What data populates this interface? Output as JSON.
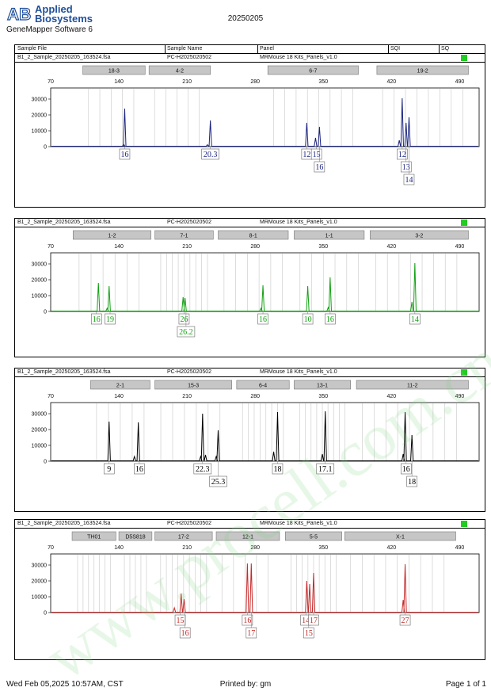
{
  "brand": {
    "logo_letters": "AB",
    "line1": "Applied",
    "line2": "Biosystems",
    "software": "GeneMapper Software 6"
  },
  "header_date": "20250205",
  "columns": {
    "sample_file": "Sample File",
    "sample_name": "Sample Name",
    "panel": "Panel",
    "sqi": "SQI",
    "sq": "SQ"
  },
  "footer": {
    "left": "Wed Feb 05,2025 10:57AM, CST",
    "center": "Printed by: gm",
    "right": "Page 1 of 1"
  },
  "watermark": "www.procell.com.cn",
  "chart_data": [
    {
      "type": "line",
      "color": "#1a237e",
      "sample_file": "B1_2_Sample_20250205_163524.fsa",
      "sample_name": "PC-H2025020502",
      "panel": "MRMouse 18 Kits_Panels_v1.0",
      "xlim": [
        70,
        510
      ],
      "xticks": [
        70,
        140,
        210,
        280,
        350,
        420,
        490
      ],
      "ylim": [
        0,
        37000
      ],
      "yticks": [
        0,
        10000,
        20000,
        30000
      ],
      "markers": [
        {
          "label": "18-3",
          "start": 103,
          "end": 167
        },
        {
          "label": "4-2",
          "start": 171,
          "end": 234
        },
        {
          "label": "6-7",
          "start": 293,
          "end": 386
        },
        {
          "label": "19-2",
          "start": 405,
          "end": 499
        }
      ],
      "peaks": [
        {
          "x": 145,
          "y": 1500
        },
        {
          "x": 146,
          "y": 24000
        },
        {
          "x": 231,
          "y": 1200
        },
        {
          "x": 234,
          "y": 16500
        },
        {
          "x": 333,
          "y": 15000
        },
        {
          "x": 342,
          "y": 5500
        },
        {
          "x": 346,
          "y": 12500
        },
        {
          "x": 428,
          "y": 4000
        },
        {
          "x": 431,
          "y": 30500
        },
        {
          "x": 435,
          "y": 15000
        },
        {
          "x": 438,
          "y": 18500
        }
      ],
      "alleles": [
        {
          "x": 146,
          "row": 0,
          "text": "16"
        },
        {
          "x": 234,
          "row": 0,
          "text": "20.3"
        },
        {
          "x": 333,
          "row": 0,
          "text": "12"
        },
        {
          "x": 343,
          "row": 0,
          "text": "15"
        },
        {
          "x": 346,
          "row": 1,
          "text": "16"
        },
        {
          "x": 431,
          "row": 0,
          "text": "12"
        },
        {
          "x": 435,
          "row": 1,
          "text": "13"
        },
        {
          "x": 438,
          "row": 2,
          "text": "14"
        }
      ]
    },
    {
      "type": "line",
      "color": "#11a011",
      "sample_file": "B1_2_Sample_20250205_163524.fsa",
      "sample_name": "PC-H2025020502",
      "panel": "MRMouse 18 Kits_Panels_v1.0",
      "xlim": [
        70,
        510
      ],
      "xticks": [
        70,
        140,
        210,
        280,
        350,
        420,
        490
      ],
      "ylim": [
        0,
        37000
      ],
      "yticks": [
        0,
        10000,
        20000,
        30000
      ],
      "markers": [
        {
          "label": "1-2",
          "start": 93,
          "end": 173
        },
        {
          "label": "7-1",
          "start": 177,
          "end": 237
        },
        {
          "label": "8-1",
          "start": 242,
          "end": 314
        },
        {
          "label": "1-1",
          "start": 320,
          "end": 392
        },
        {
          "label": "3-2",
          "start": 398,
          "end": 499
        }
      ],
      "peaks": [
        {
          "x": 119,
          "y": 18000
        },
        {
          "x": 128,
          "y": 2000
        },
        {
          "x": 130,
          "y": 16000
        },
        {
          "x": 206,
          "y": 9000
        },
        {
          "x": 208,
          "y": 8500
        },
        {
          "x": 288,
          "y": 16500
        },
        {
          "x": 286,
          "y": 2000
        },
        {
          "x": 334,
          "y": 16000
        },
        {
          "x": 357,
          "y": 21500
        },
        {
          "x": 355,
          "y": 2500
        },
        {
          "x": 441,
          "y": 6000
        },
        {
          "x": 444,
          "y": 30500
        }
      ],
      "alleles": [
        {
          "x": 117,
          "row": 0,
          "text": "16"
        },
        {
          "x": 131,
          "row": 0,
          "text": "19"
        },
        {
          "x": 207,
          "row": 0,
          "text": "26"
        },
        {
          "x": 209,
          "row": 1,
          "text": "26.2"
        },
        {
          "x": 288,
          "row": 0,
          "text": "16"
        },
        {
          "x": 334,
          "row": 0,
          "text": "10"
        },
        {
          "x": 357,
          "row": 0,
          "text": "16"
        },
        {
          "x": 444,
          "row": 0,
          "text": "14"
        }
      ]
    },
    {
      "type": "line",
      "color": "#000000",
      "sample_file": "B1_2_Sample_20250205_163524.fsa",
      "sample_name": "PC-H2025020502",
      "panel": "MRMouse 18 Kits_Panels_v1.0",
      "xlim": [
        70,
        510
      ],
      "xticks": [
        70,
        140,
        210,
        280,
        350,
        420,
        490
      ],
      "ylim": [
        0,
        37000
      ],
      "yticks": [
        0,
        10000,
        20000,
        30000
      ],
      "markers": [
        {
          "label": "2-1",
          "start": 111,
          "end": 172
        },
        {
          "label": "15-3",
          "start": 177,
          "end": 256
        },
        {
          "label": "6-4",
          "start": 261,
          "end": 315
        },
        {
          "label": "13-1",
          "start": 320,
          "end": 378
        },
        {
          "label": "11-2",
          "start": 384,
          "end": 499
        }
      ],
      "peaks": [
        {
          "x": 130,
          "y": 25000
        },
        {
          "x": 156,
          "y": 3000
        },
        {
          "x": 160,
          "y": 24500
        },
        {
          "x": 224,
          "y": 3000
        },
        {
          "x": 226,
          "y": 30000
        },
        {
          "x": 229,
          "y": 4000
        },
        {
          "x": 240,
          "y": 3000
        },
        {
          "x": 242,
          "y": 19500
        },
        {
          "x": 299,
          "y": 6000
        },
        {
          "x": 303,
          "y": 31000
        },
        {
          "x": 349,
          "y": 4500
        },
        {
          "x": 352,
          "y": 31500
        },
        {
          "x": 432,
          "y": 4500
        },
        {
          "x": 434,
          "y": 31000
        },
        {
          "x": 441,
          "y": 16500
        }
      ],
      "alleles": [
        {
          "x": 130,
          "row": 0,
          "text": "9"
        },
        {
          "x": 161,
          "row": 0,
          "text": "16"
        },
        {
          "x": 226,
          "row": 0,
          "text": "22.3"
        },
        {
          "x": 242,
          "row": 1,
          "text": "25.3"
        },
        {
          "x": 303,
          "row": 0,
          "text": "18"
        },
        {
          "x": 352,
          "row": 0,
          "text": "17.1"
        },
        {
          "x": 435,
          "row": 0,
          "text": "16"
        },
        {
          "x": 441,
          "row": 1,
          "text": "18"
        }
      ]
    },
    {
      "type": "line",
      "color": "#c62828",
      "sample_file": "B1_2_Sample_20250205_163524.fsa",
      "sample_name": "PC-H2025020502",
      "panel": "MRMouse 18 Kits_Panels_v1.0",
      "xlim": [
        70,
        510
      ],
      "xticks": [
        70,
        140,
        210,
        280,
        350,
        420,
        490
      ],
      "ylim": [
        0,
        37000
      ],
      "yticks": [
        0,
        10000,
        20000,
        30000
      ],
      "markers": [
        {
          "label": "TH01",
          "start": 92,
          "end": 137
        },
        {
          "label": "D5S818",
          "start": 140,
          "end": 174
        },
        {
          "label": "17-2",
          "start": 177,
          "end": 236
        },
        {
          "label": "12-1",
          "start": 240,
          "end": 305
        },
        {
          "label": "5-5",
          "start": 311,
          "end": 369
        },
        {
          "label": "X-1",
          "start": 372,
          "end": 486
        }
      ],
      "peaks": [
        {
          "x": 197,
          "y": 3000
        },
        {
          "x": 204,
          "y": 12000
        },
        {
          "x": 207,
          "y": 8500
        },
        {
          "x": 272,
          "y": 31000
        },
        {
          "x": 276,
          "y": 31000
        },
        {
          "x": 333,
          "y": 20000
        },
        {
          "x": 336,
          "y": 18000
        },
        {
          "x": 340,
          "y": 25000
        },
        {
          "x": 432,
          "y": 8000
        },
        {
          "x": 434,
          "y": 30500
        }
      ],
      "alleles": [
        {
          "x": 203,
          "row": 0,
          "text": "15"
        },
        {
          "x": 208,
          "row": 1,
          "text": "16"
        },
        {
          "x": 272,
          "row": 0,
          "text": "16"
        },
        {
          "x": 276,
          "row": 1,
          "text": "17"
        },
        {
          "x": 332,
          "row": 0,
          "text": "14"
        },
        {
          "x": 335,
          "row": 1,
          "text": "15"
        },
        {
          "x": 340,
          "row": 0,
          "text": "17"
        },
        {
          "x": 434,
          "row": 0,
          "text": "27"
        }
      ]
    }
  ]
}
